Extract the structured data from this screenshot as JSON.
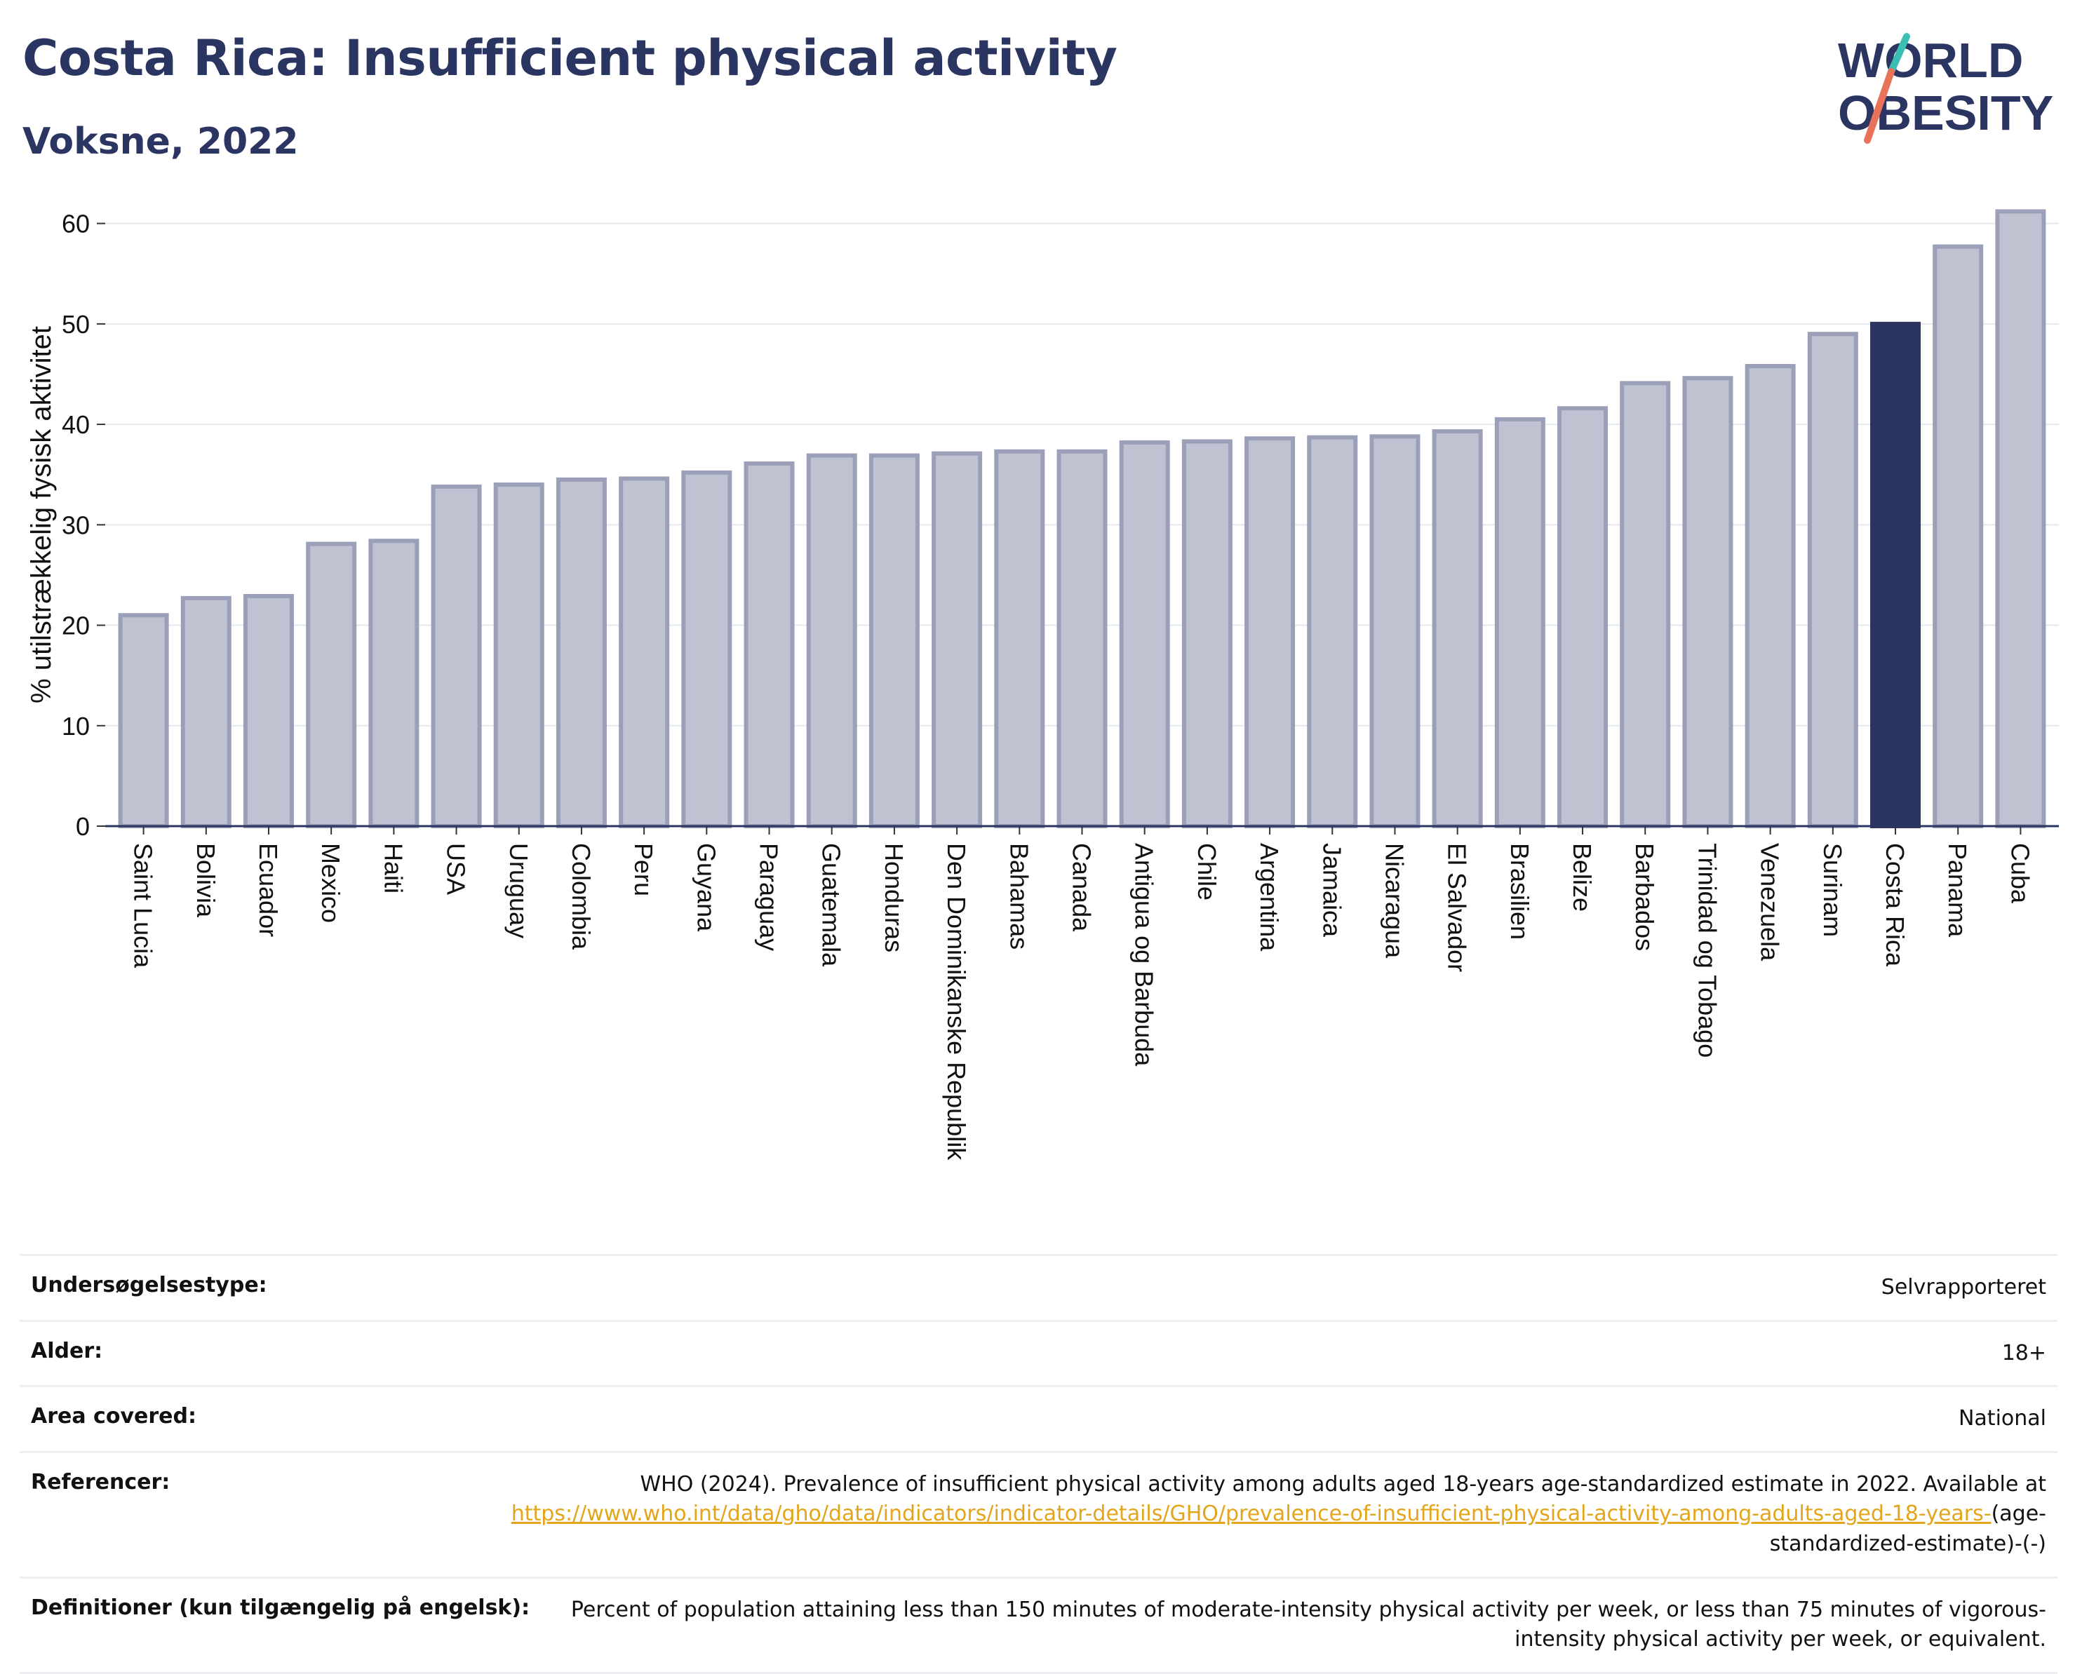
{
  "header": {
    "title": "Costa Rica: Insufficient physical activity",
    "subtitle": "Voksne, 2022"
  },
  "logo": {
    "line1": "WORLD",
    "line2": "OBESITY",
    "colors": {
      "text": "#2b3561",
      "slash_teal": "#3bbfb5",
      "slash_coral": "#e8735a"
    }
  },
  "colors": {
    "bar": "#bfc2d1",
    "bar_border": "#9ba0b8",
    "highlight": "#2b3561",
    "grid": "#e6e8ee",
    "axis": "#2b3561",
    "link": "#e3a51b"
  },
  "chart_data": {
    "type": "bar",
    "ylabel": "% utilstrækkelig fysisk aktivitet",
    "ylim": [
      0,
      62
    ],
    "yticks": [
      0,
      10,
      20,
      30,
      40,
      50,
      60
    ],
    "grid": true,
    "highlight": "Costa Rica",
    "categories": [
      "Saint Lucia",
      "Bolivia",
      "Ecuador",
      "Mexico",
      "Haiti",
      "USA",
      "Uruguay",
      "Colombia",
      "Peru",
      "Guyana",
      "Paraguay",
      "Guatemala",
      "Honduras",
      "Den Dominikanske Republik",
      "Bahamas",
      "Canada",
      "Antigua og Barbuda",
      "Chile",
      "Argentina",
      "Jamaica",
      "Nicaragua",
      "El Salvador",
      "Brasilien",
      "Belize",
      "Barbados",
      "Trinidad og Tobago",
      "Venezuela",
      "Surinam",
      "Costa Rica",
      "Panama",
      "Cuba"
    ],
    "values": [
      21.0,
      22.7,
      22.9,
      28.1,
      28.4,
      33.8,
      34.0,
      34.5,
      34.6,
      35.2,
      36.1,
      36.9,
      36.9,
      37.1,
      37.3,
      37.3,
      38.2,
      38.3,
      38.6,
      38.7,
      38.8,
      39.3,
      40.5,
      41.6,
      44.1,
      44.6,
      45.8,
      49.0,
      50.0,
      57.7,
      61.2
    ]
  },
  "details": [
    {
      "label": "Undersøgelsestype:",
      "value": "Selvrapporteret"
    },
    {
      "label": "Alder:",
      "value": "18+"
    },
    {
      "label": "Area covered:",
      "value": "National"
    },
    {
      "label": "Referencer:",
      "value": "WHO (2024). Prevalence of insufficient physical activity among adults aged 18-years age-standardized estimate in 2022. Available at",
      "link": "https://www.who.int/data/gho/data/indicators/indicator-details/GHO/prevalence-of-insufficient-physical-activity-among-adults-aged-18-years-",
      "suffix": "(age-standardized-estimate)-(-)"
    },
    {
      "label": "Definitioner (kun tilgængelig på engelsk):",
      "value": "Percent of population attaining less than 150 minutes of moderate-intensity physical activity per week, or less than 75 minutes of vigorous-intensity physical activity per week, or equivalent."
    }
  ]
}
